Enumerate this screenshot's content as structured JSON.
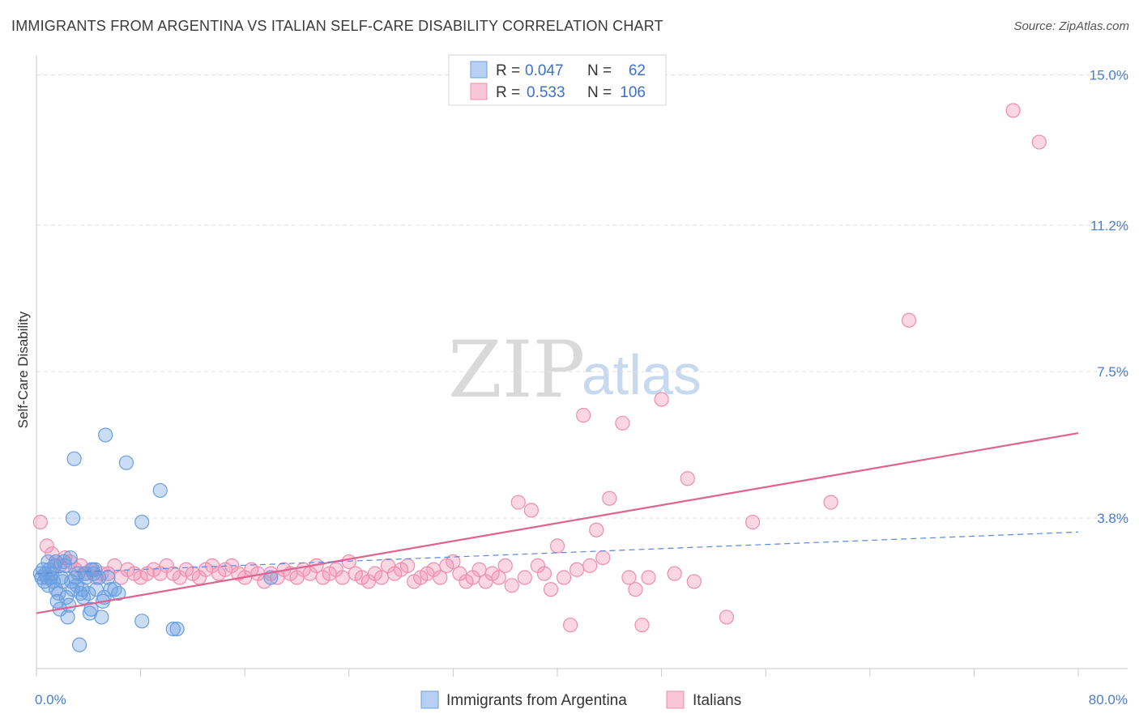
{
  "title": "IMMIGRANTS FROM ARGENTINA VS ITALIAN SELF-CARE DISABILITY CORRELATION CHART",
  "source": "Source: ZipAtlas.com",
  "watermark": {
    "zip": "ZIP",
    "atlas": "atlas"
  },
  "stats": {
    "argentina": {
      "r_label": "R =",
      "r": "0.047",
      "n_label": "N =",
      "n": "62"
    },
    "italians": {
      "r_label": "R =",
      "r": "0.533",
      "n_label": "N =",
      "n": "106"
    }
  },
  "legend": {
    "argentina": "Immigrants from Argentina",
    "italians": "Italians"
  },
  "colors": {
    "argentina": "#6a9ee0",
    "italians": "#f08cae",
    "trend_italians": "#e0628f",
    "trend_argentina": "#5a86d6",
    "tick": "#4a7ccf"
  },
  "chart_data": {
    "type": "scatter",
    "ylabel": "Self-Care Disability",
    "xlim": [
      0,
      80
    ],
    "ylim": [
      0,
      15.5
    ],
    "x_tick_labels": [
      "0.0%",
      "80.0%"
    ],
    "y_ticks": [
      3.8,
      7.5,
      11.2,
      15.0
    ],
    "y_tick_labels": [
      "3.8%",
      "7.5%",
      "11.2%",
      "15.0%"
    ],
    "series": [
      {
        "name": "Immigrants from Argentina",
        "points": [
          [
            0.3,
            2.4
          ],
          [
            0.4,
            2.3
          ],
          [
            0.5,
            2.5
          ],
          [
            0.6,
            2.2
          ],
          [
            0.7,
            2.4
          ],
          [
            0.8,
            2.3
          ],
          [
            0.9,
            2.1
          ],
          [
            1.0,
            2.5
          ],
          [
            1.1,
            2.3
          ],
          [
            1.2,
            2.4
          ],
          [
            1.3,
            2.2
          ],
          [
            1.4,
            2.6
          ],
          [
            1.5,
            2.0
          ],
          [
            1.6,
            1.7
          ],
          [
            1.7,
            1.9
          ],
          [
            1.8,
            1.5
          ],
          [
            1.9,
            2.3
          ],
          [
            2.0,
            2.2
          ],
          [
            2.1,
            2.7
          ],
          [
            2.2,
            2.6
          ],
          [
            2.3,
            1.8
          ],
          [
            2.4,
            1.3
          ],
          [
            2.5,
            1.6
          ],
          [
            2.6,
            2.8
          ],
          [
            2.7,
            2.2
          ],
          [
            2.8,
            2.0
          ],
          [
            2.9,
            5.3
          ],
          [
            3.0,
            2.3
          ],
          [
            3.1,
            2.1
          ],
          [
            3.2,
            2.4
          ],
          [
            3.3,
            0.6
          ],
          [
            3.4,
            1.9
          ],
          [
            3.5,
            2.0
          ],
          [
            3.6,
            1.8
          ],
          [
            3.8,
            2.3
          ],
          [
            4.0,
            1.9
          ],
          [
            4.1,
            1.4
          ],
          [
            4.2,
            1.5
          ],
          [
            4.3,
            2.5
          ],
          [
            4.4,
            2.4
          ],
          [
            4.6,
            2.0
          ],
          [
            4.8,
            2.3
          ],
          [
            5.0,
            1.3
          ],
          [
            5.1,
            1.7
          ],
          [
            5.3,
            5.9
          ],
          [
            5.5,
            2.3
          ],
          [
            5.7,
            2.0
          ],
          [
            6.0,
            2.0
          ],
          [
            6.3,
            1.9
          ],
          [
            6.9,
            5.2
          ],
          [
            8.1,
            1.2
          ],
          [
            8.1,
            3.7
          ],
          [
            9.5,
            4.5
          ],
          [
            10.5,
            1.0
          ],
          [
            10.8,
            1.0
          ],
          [
            2.8,
            3.8
          ],
          [
            1.5,
            2.7
          ],
          [
            0.9,
            2.7
          ],
          [
            3.7,
            2.4
          ],
          [
            4.5,
            2.5
          ],
          [
            5.2,
            1.8
          ],
          [
            18.0,
            2.3
          ]
        ]
      },
      {
        "name": "Italians",
        "points": [
          [
            0.3,
            3.7
          ],
          [
            0.8,
            3.1
          ],
          [
            1.2,
            2.9
          ],
          [
            1.5,
            2.7
          ],
          [
            1.8,
            2.6
          ],
          [
            2.2,
            2.8
          ],
          [
            2.6,
            2.7
          ],
          [
            3.0,
            2.5
          ],
          [
            3.4,
            2.6
          ],
          [
            3.8,
            2.4
          ],
          [
            4.2,
            2.5
          ],
          [
            4.6,
            2.3
          ],
          [
            5.0,
            2.4
          ],
          [
            5.5,
            2.4
          ],
          [
            6.0,
            2.6
          ],
          [
            6.5,
            2.3
          ],
          [
            7.0,
            2.5
          ],
          [
            7.5,
            2.4
          ],
          [
            8.0,
            2.3
          ],
          [
            8.5,
            2.4
          ],
          [
            9.0,
            2.5
          ],
          [
            9.5,
            2.4
          ],
          [
            10.0,
            2.6
          ],
          [
            10.5,
            2.4
          ],
          [
            11.0,
            2.3
          ],
          [
            11.5,
            2.5
          ],
          [
            12.0,
            2.4
          ],
          [
            12.5,
            2.3
          ],
          [
            13.0,
            2.5
          ],
          [
            13.5,
            2.6
          ],
          [
            14.0,
            2.4
          ],
          [
            14.5,
            2.5
          ],
          [
            15.0,
            2.6
          ],
          [
            15.5,
            2.4
          ],
          [
            16.0,
            2.3
          ],
          [
            16.5,
            2.5
          ],
          [
            17.0,
            2.4
          ],
          [
            17.5,
            2.2
          ],
          [
            18.0,
            2.4
          ],
          [
            18.5,
            2.3
          ],
          [
            19.0,
            2.5
          ],
          [
            19.5,
            2.4
          ],
          [
            20.0,
            2.3
          ],
          [
            20.5,
            2.5
          ],
          [
            21.0,
            2.4
          ],
          [
            21.5,
            2.6
          ],
          [
            22.0,
            2.3
          ],
          [
            22.5,
            2.4
          ],
          [
            23.0,
            2.5
          ],
          [
            23.5,
            2.3
          ],
          [
            24.0,
            2.7
          ],
          [
            24.5,
            2.4
          ],
          [
            25.0,
            2.3
          ],
          [
            25.5,
            2.2
          ],
          [
            26.0,
            2.4
          ],
          [
            26.5,
            2.3
          ],
          [
            27.0,
            2.6
          ],
          [
            27.5,
            2.4
          ],
          [
            28.0,
            2.5
          ],
          [
            28.5,
            2.6
          ],
          [
            29.0,
            2.2
          ],
          [
            29.5,
            2.3
          ],
          [
            30.0,
            2.4
          ],
          [
            30.5,
            2.5
          ],
          [
            31.0,
            2.3
          ],
          [
            31.5,
            2.6
          ],
          [
            32.0,
            2.7
          ],
          [
            32.5,
            2.4
          ],
          [
            33.0,
            2.2
          ],
          [
            33.5,
            2.3
          ],
          [
            34.0,
            2.5
          ],
          [
            34.5,
            2.2
          ],
          [
            35.0,
            2.4
          ],
          [
            35.5,
            2.3
          ],
          [
            36.0,
            2.6
          ],
          [
            36.5,
            2.1
          ],
          [
            37.0,
            4.2
          ],
          [
            37.5,
            2.3
          ],
          [
            38.0,
            4.0
          ],
          [
            38.5,
            2.6
          ],
          [
            39.0,
            2.4
          ],
          [
            39.5,
            2.0
          ],
          [
            40.0,
            3.1
          ],
          [
            40.5,
            2.3
          ],
          [
            41.0,
            1.1
          ],
          [
            41.5,
            2.5
          ],
          [
            42.0,
            6.4
          ],
          [
            42.5,
            2.6
          ],
          [
            43.0,
            3.5
          ],
          [
            43.5,
            2.8
          ],
          [
            44.0,
            4.3
          ],
          [
            45.0,
            6.2
          ],
          [
            45.5,
            2.3
          ],
          [
            46.0,
            2.0
          ],
          [
            46.5,
            1.1
          ],
          [
            47.0,
            2.3
          ],
          [
            48.0,
            6.8
          ],
          [
            49.0,
            2.4
          ],
          [
            50.0,
            4.8
          ],
          [
            50.5,
            2.2
          ],
          [
            53.0,
            1.3
          ],
          [
            55.0,
            3.7
          ],
          [
            61.0,
            4.2
          ],
          [
            67.0,
            8.8
          ],
          [
            75.0,
            14.1
          ],
          [
            77.0,
            13.3
          ]
        ]
      }
    ],
    "trend_lines": [
      {
        "name": "Italians",
        "x": [
          0,
          80
        ],
        "y": [
          1.4,
          5.95
        ]
      },
      {
        "name": "Immigrants from Argentina",
        "x": [
          0,
          80
        ],
        "y": [
          2.4,
          3.45
        ]
      }
    ]
  }
}
